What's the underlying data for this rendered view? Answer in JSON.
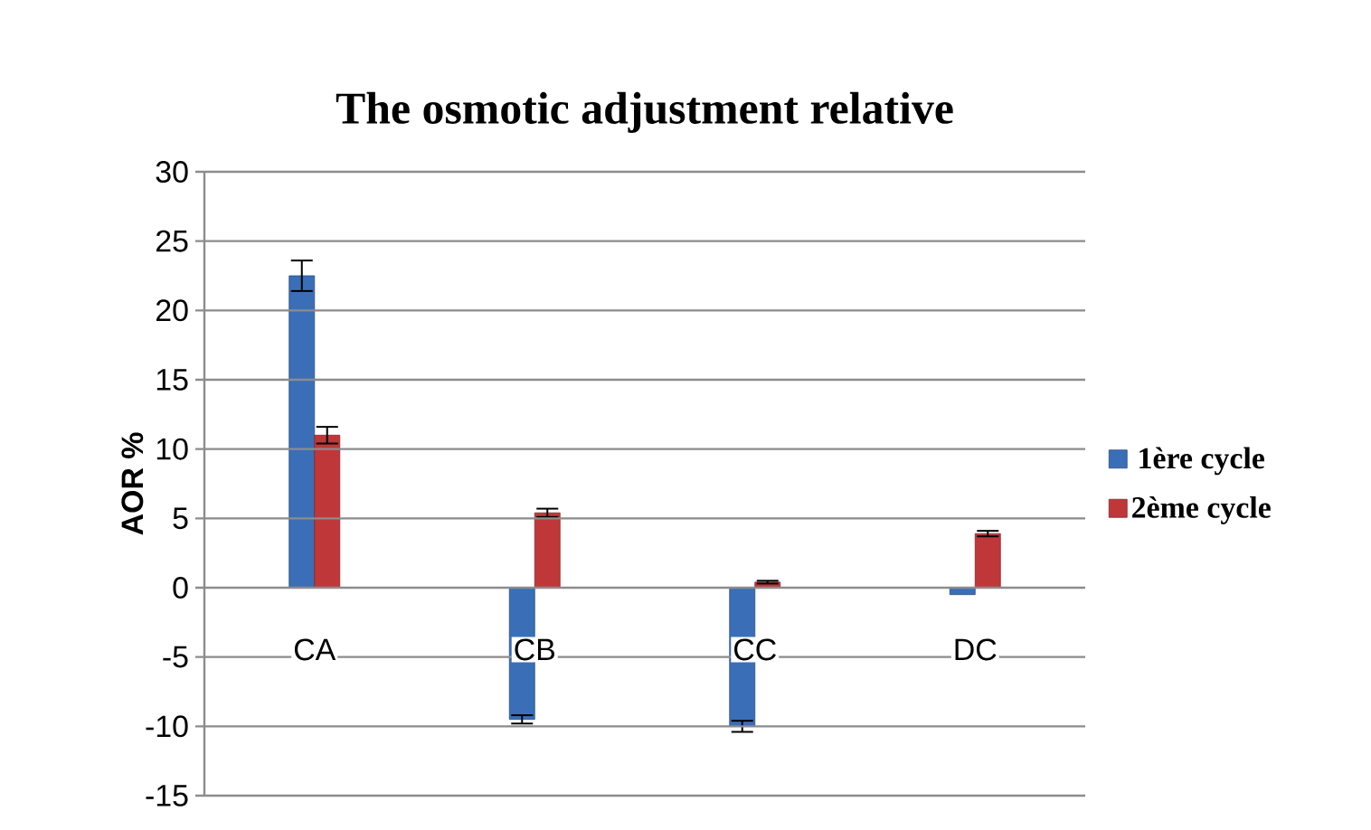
{
  "chart_data": {
    "type": "bar",
    "title": "The osmotic adjustment relative",
    "ylabel": "AOR %",
    "categories": [
      "CA",
      "CB",
      "CC",
      "DC"
    ],
    "series": [
      {
        "name": "1ère cycle",
        "color": "#3a6fb8",
        "values": [
          22.5,
          -9.5,
          -10.0,
          -0.5
        ],
        "errors": [
          1.1,
          0.3,
          0.4,
          null
        ]
      },
      {
        "name": "2ème cycle",
        "color": "#c0373a",
        "values": [
          11.0,
          5.4,
          0.4,
          3.9
        ],
        "errors": [
          0.6,
          0.3,
          0.1,
          0.2
        ]
      }
    ],
    "ylim": [
      -15,
      30
    ],
    "yticks": [
      -15,
      -10,
      -5,
      0,
      5,
      10,
      15,
      20,
      25,
      30
    ],
    "grid": "y",
    "legend": "right"
  }
}
